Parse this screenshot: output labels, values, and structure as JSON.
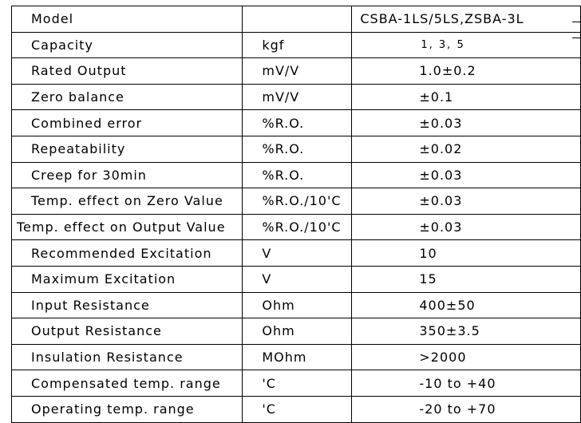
{
  "rows": [
    {
      "param": "Model",
      "unit": "",
      "value": "CSBA-1LS/5LS,ZSBA-3L"
    },
    {
      "param": "Capacity",
      "unit": "kgf",
      "value": "1, 3, 5"
    },
    {
      "param": "Rated Output",
      "unit": "mV/V",
      "value": "1.0±0.2"
    },
    {
      "param": "Zero balance",
      "unit": "mV/V",
      "value": "±0.1"
    },
    {
      "param": "Combined error",
      "unit": "%R.O.",
      "value": "±0.03"
    },
    {
      "param": "Repeatability",
      "unit": "%R.O.",
      "value": "±0.02"
    },
    {
      "param": "Creep for 30min",
      "unit": "%R.O.",
      "value": "±0.03"
    },
    {
      "param": "Temp. effect on Zero Value",
      "unit": "%R.O./10'C",
      "value": "±0.03"
    },
    {
      "param": "Temp. effect on Output Value",
      "unit": "%R.O./10'C",
      "value": "±0.03"
    },
    {
      "param": "Recommended Excitation",
      "unit": "V",
      "value": "10"
    },
    {
      "param": "Maximum Excitation",
      "unit": "V",
      "value": "15"
    },
    {
      "param": "Input Resistance",
      "unit": "Ohm",
      "value": "400±50"
    },
    {
      "param": "Output Resistance",
      "unit": "Ohm",
      "value": "350±3.5"
    },
    {
      "param": "Insulation Resistance",
      "unit": "MOhm",
      "value": ">2000"
    },
    {
      "param": "Compensated temp. range",
      "unit": "'C",
      "value": "-10 to +40"
    },
    {
      "param": "Operating temp. range",
      "unit": "'C",
      "value": "-20 to +70"
    }
  ]
}
